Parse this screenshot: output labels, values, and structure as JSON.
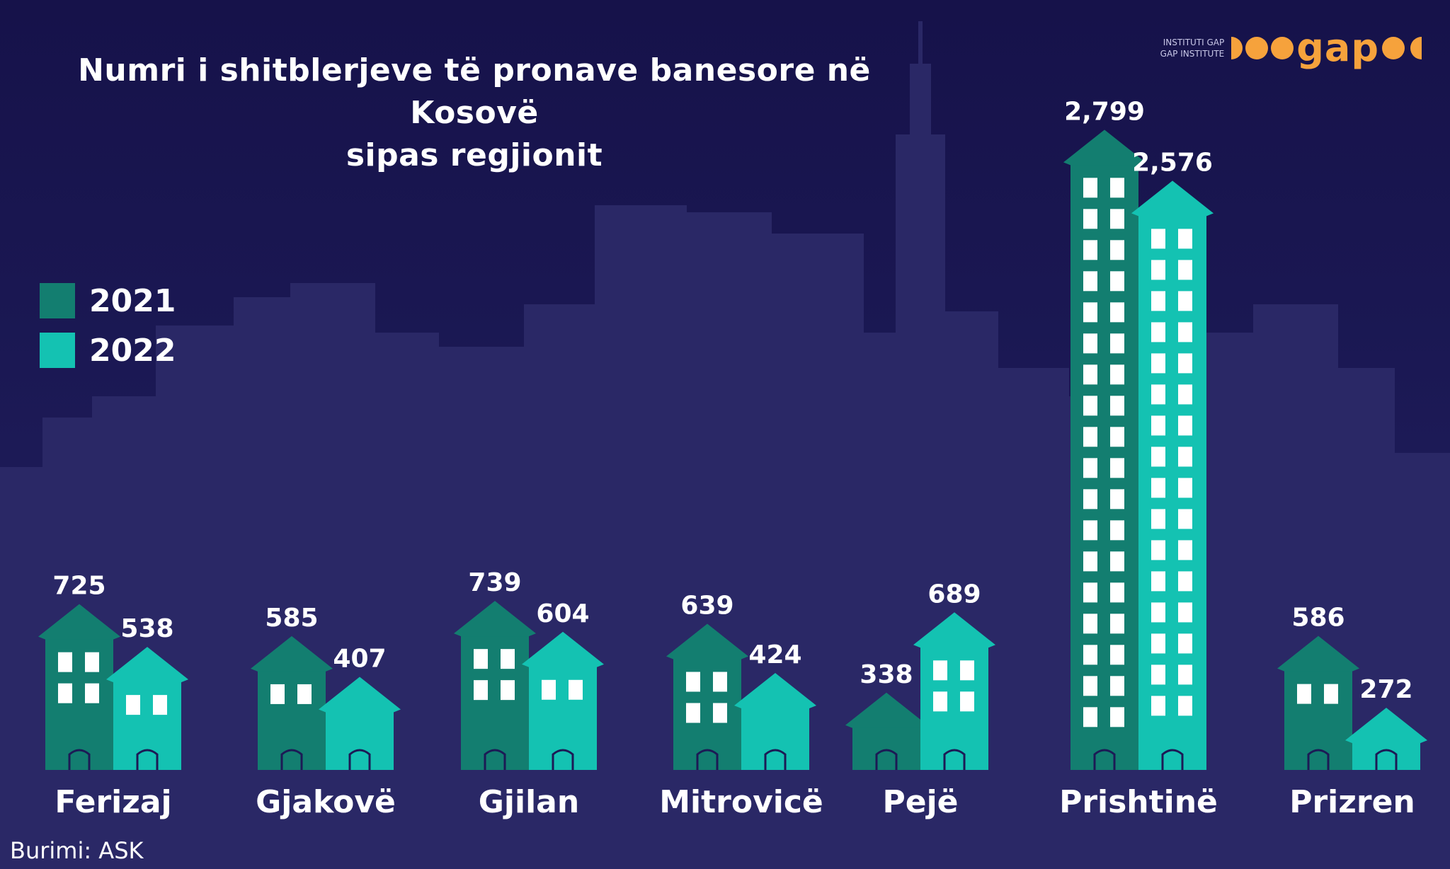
{
  "title_line1": "Numri i shitblerjeve të pronave banesore në Kosovë",
  "title_line2": "sipas regjionit",
  "source": "Burimi: ASK",
  "logo": {
    "small_line1": "INSTITUTI GAP",
    "small_line2": "GAP INSTITUTE",
    "main": "gap"
  },
  "colors": {
    "y2021": "#137e70",
    "y2022": "#14c2b2",
    "background": "#1c1a55",
    "skyline": "#2a2866"
  },
  "chart_data": {
    "type": "bar",
    "title": "Numri i shitblerjeve të pronave banesore në Kosovë sipas regjionit",
    "categories": [
      "Ferizaj",
      "Gjakovë",
      "Gjilan",
      "Mitrovicë",
      "Pejë",
      "Prishtinë",
      "Prizren"
    ],
    "series": [
      {
        "name": "2021",
        "values": [
          725,
          585,
          739,
          639,
          338,
          2799,
          586
        ]
      },
      {
        "name": "2022",
        "values": [
          538,
          407,
          604,
          424,
          689,
          2576,
          272
        ]
      }
    ],
    "value_labels": [
      [
        "725",
        "585",
        "739",
        "639",
        "338",
        "2,799",
        "586"
      ],
      [
        "538",
        "407",
        "604",
        "424",
        "689",
        "2,576",
        "272"
      ]
    ],
    "legend_position": "left",
    "grid": false
  }
}
